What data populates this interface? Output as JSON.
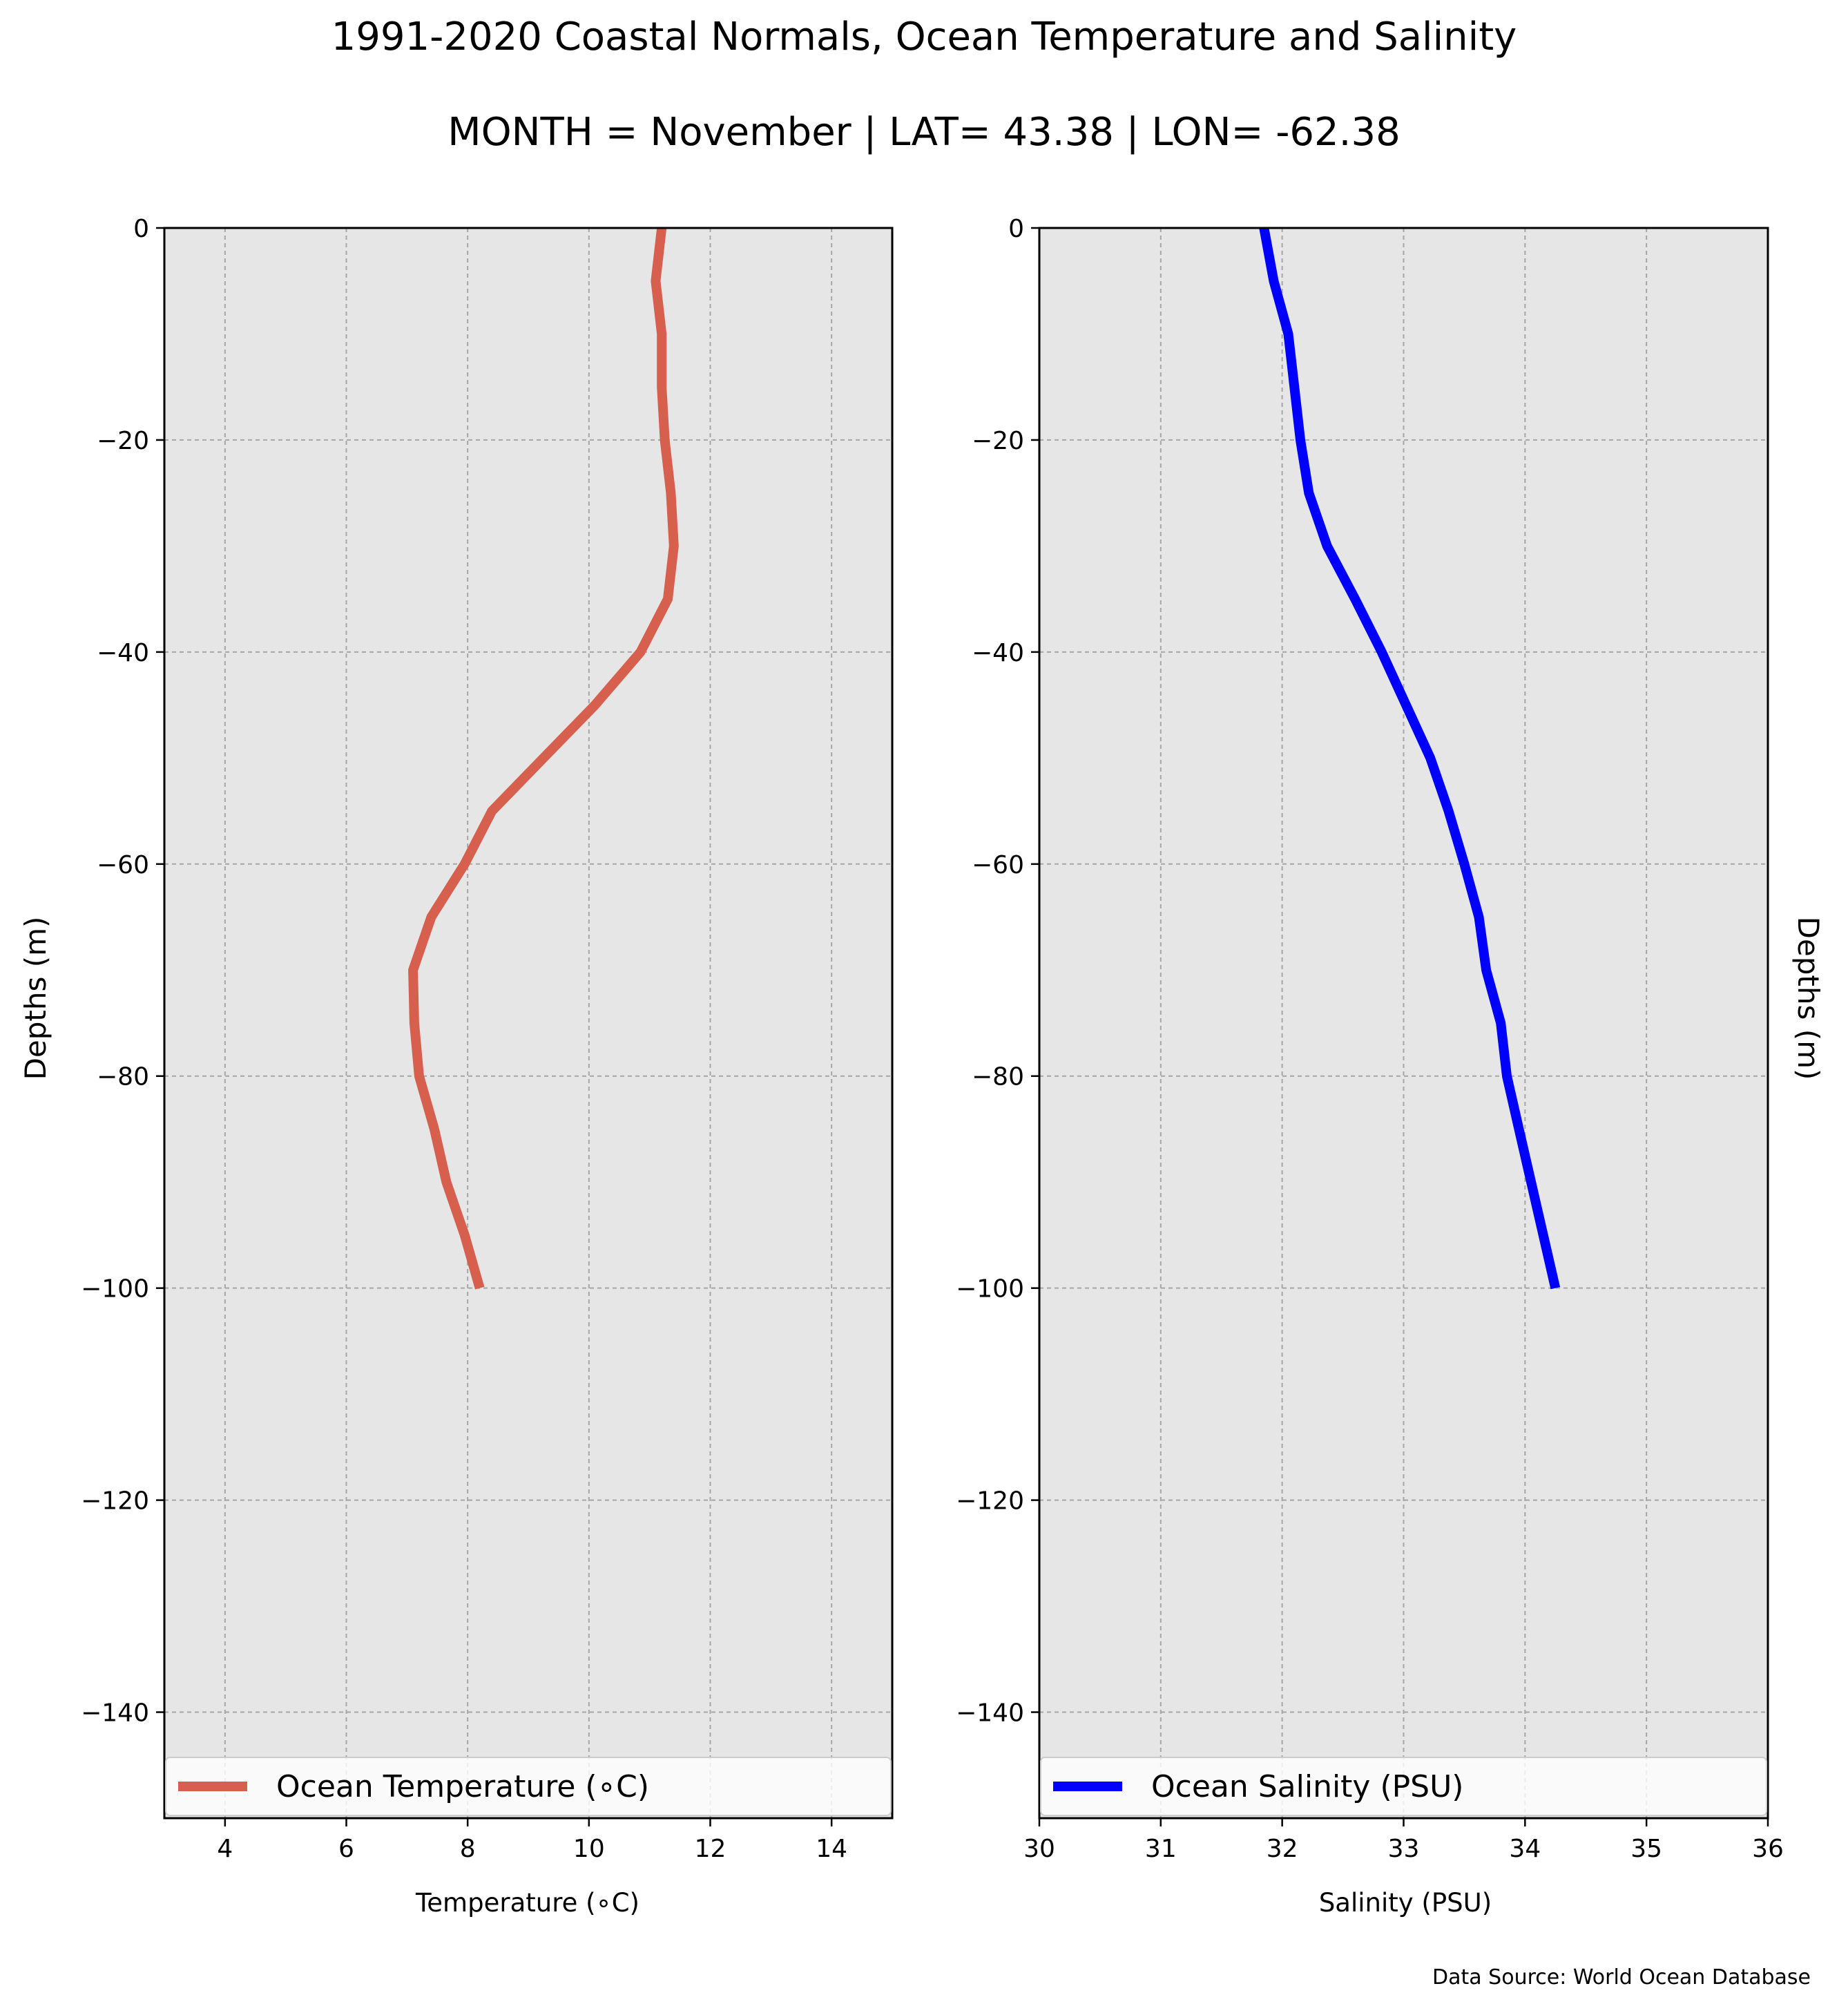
{
  "figure": {
    "title": "1991-2020 Coastal Normals, Ocean Temperature and Salinity",
    "subtitle": "MONTH = November | LAT= 43.38 | LON= -62.38",
    "source_note": "Data Source: World Ocean Database"
  },
  "chart_data": [
    {
      "type": "line",
      "xlabel": "Temperature ($^\\circ$C)",
      "xlabel_display": "Temperature (∘C)",
      "ylabel": "Depths (m)",
      "xlim": [
        3,
        15
      ],
      "ylim": [
        -150,
        0
      ],
      "xticks": [
        4,
        6,
        8,
        10,
        12,
        14
      ],
      "yticks": [
        0,
        -20,
        -40,
        -60,
        -80,
        -100,
        -120,
        -140
      ],
      "ytick_labels": [
        "0",
        "−20",
        "−40",
        "−60",
        "−80",
        "−100",
        "−120",
        "−140"
      ],
      "grid": true,
      "background": "#e6e6e6",
      "legend": {
        "placement": "lower-center",
        "label": "Ocean Temperature (∘C)"
      },
      "series": [
        {
          "name": "Ocean Temperature (∘C)",
          "color": "#d65f4e",
          "x": [
            11.2,
            11.1,
            11.2,
            11.2,
            11.25,
            11.35,
            11.4,
            11.3,
            10.85,
            10.1,
            9.25,
            8.4,
            7.95,
            7.4,
            7.1,
            7.12,
            7.2,
            7.45,
            7.65,
            7.95,
            8.2
          ],
          "y": [
            0,
            -5,
            -10,
            -15,
            -20,
            -25,
            -30,
            -35,
            -40,
            -45,
            -50,
            -55,
            -60,
            -65,
            -70,
            -75,
            -80,
            -85,
            -90,
            -95,
            -100
          ]
        }
      ]
    },
    {
      "type": "line",
      "xlabel": "Salinity (PSU)",
      "ylabel": "Depths (m)",
      "xlim": [
        30,
        36
      ],
      "ylim": [
        -150,
        0
      ],
      "xticks": [
        30,
        31,
        32,
        33,
        34,
        35,
        36
      ],
      "yticks": [
        0,
        -20,
        -40,
        -60,
        -80,
        -100,
        -120,
        -140
      ],
      "ytick_labels": [
        "0",
        "−20",
        "−40",
        "−60",
        "−80",
        "−100",
        "−120",
        "−140"
      ],
      "grid": true,
      "background": "#e6e6e6",
      "legend": {
        "placement": "lower-center",
        "label": "Ocean Salinity (PSU)"
      },
      "series": [
        {
          "name": "Ocean Salinity (PSU)",
          "color": "#0000ff",
          "x": [
            31.85,
            31.93,
            32.05,
            32.1,
            32.15,
            32.22,
            32.37,
            32.6,
            32.82,
            33.02,
            33.22,
            33.37,
            33.5,
            33.62,
            33.68,
            33.8,
            33.85,
            33.95,
            34.05,
            34.15,
            34.25
          ],
          "y": [
            0,
            -5,
            -10,
            -15,
            -20,
            -25,
            -30,
            -35,
            -40,
            -45,
            -50,
            -55,
            -60,
            -65,
            -70,
            -75,
            -80,
            -85,
            -90,
            -95,
            -100
          ]
        }
      ]
    }
  ]
}
